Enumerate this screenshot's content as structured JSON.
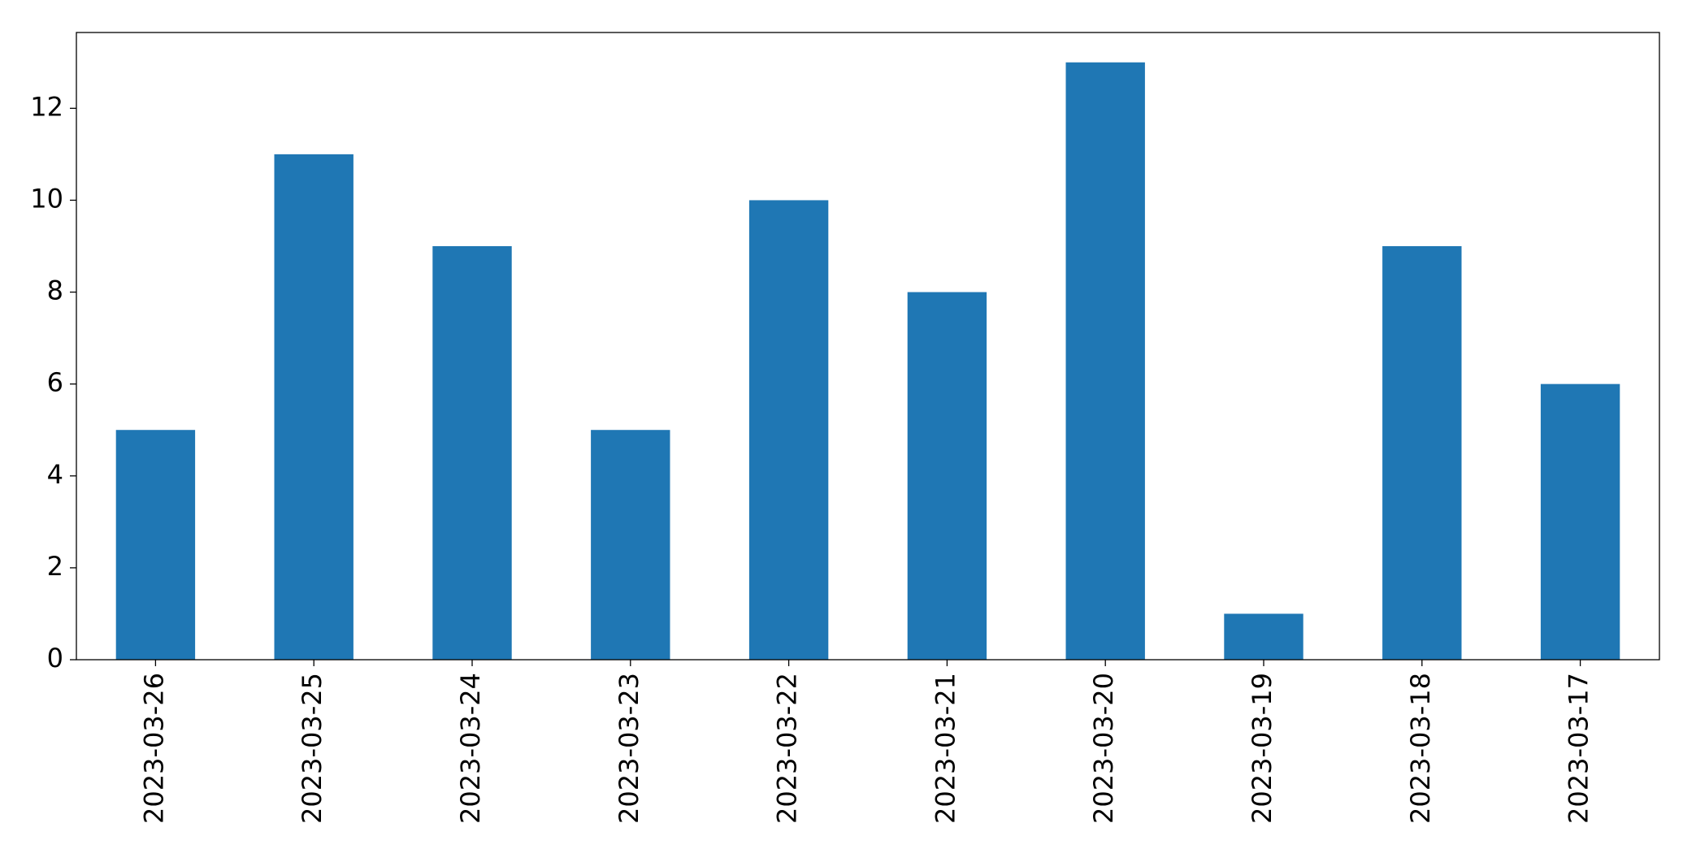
{
  "chart_data": {
    "type": "bar",
    "categories": [
      "2023-03-26",
      "2023-03-25",
      "2023-03-24",
      "2023-03-23",
      "2023-03-22",
      "2023-03-21",
      "2023-03-20",
      "2023-03-19",
      "2023-03-18",
      "2023-03-17"
    ],
    "values": [
      5,
      11,
      9,
      5,
      10,
      8,
      13,
      1,
      9,
      6
    ],
    "color": "#1f77b4",
    "ylim": [
      0,
      13.65
    ],
    "yticks": [
      0,
      2,
      4,
      6,
      8,
      10,
      12
    ],
    "grid": false
  }
}
